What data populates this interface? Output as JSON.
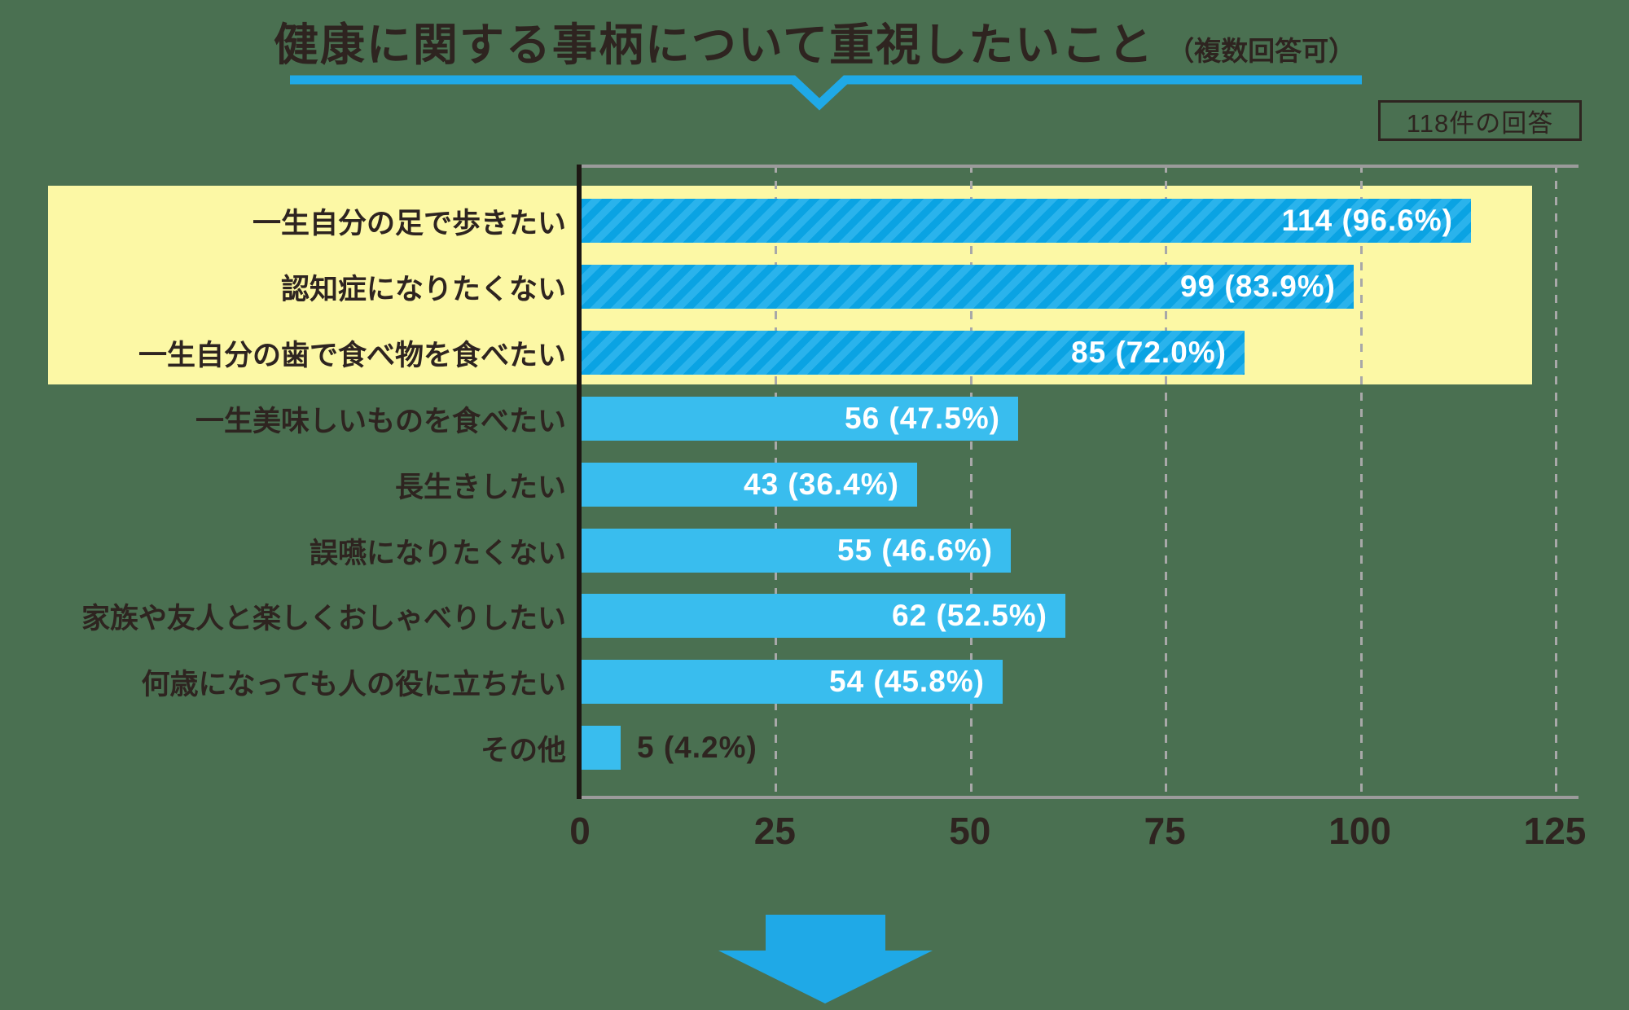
{
  "title": {
    "main": "健康に関する事柄について重視したいこと",
    "note": "（複数回答可）"
  },
  "answer_count_badge": "118件の回答",
  "chart_data": {
    "type": "bar",
    "orientation": "horizontal",
    "title": "健康に関する事柄について重視したいこと（複数回答可）",
    "total_responses": 118,
    "categories": [
      "一生自分の足で歩きたい",
      "認知症になりたくない",
      "一生自分の歯で食べ物を食べたい",
      "一生美味しいものを食べたい",
      "長生きしたい",
      "誤嚥になりたくない",
      "家族や友人と楽しくおしゃべりしたい",
      "何歳になっても人の役に立ちたい",
      "その他"
    ],
    "values": [
      114,
      99,
      85,
      56,
      43,
      55,
      62,
      54,
      5
    ],
    "percentages": [
      96.6,
      83.9,
      72.0,
      47.5,
      36.4,
      46.6,
      52.5,
      45.8,
      4.2
    ],
    "value_labels": [
      "114 (96.6%)",
      "99 (83.9%)",
      "85 (72.0%)",
      "56 (47.5%)",
      "43 (36.4%)",
      "55 (46.6%)",
      "62 (52.5%)",
      "54 (45.8%)",
      "5 (4.2%)"
    ],
    "highlighted_categories": [
      "一生自分の足で歩きたい",
      "認知症になりたくない",
      "一生自分の歯で食べ物を食べたい"
    ],
    "x_ticks": [
      0,
      25,
      50,
      75,
      100,
      125
    ],
    "xlim": [
      0,
      125
    ],
    "grid": "dashed-vertical",
    "legend": "none",
    "colors": {
      "background_green": "#4a7051",
      "highlight_yellow": "#fcf8a5",
      "bar_blue": "#39bdee",
      "bar_stripe_dark": "#0aa3e3",
      "bar_stripe_light": "#2ab3ec",
      "accent_blue": "#1fa9e7",
      "text_dark": "#2e2420",
      "grid_gray": "#a8a8a8",
      "axis_gray": "#9b9b9b",
      "value_text_white": "#ffffff"
    }
  }
}
